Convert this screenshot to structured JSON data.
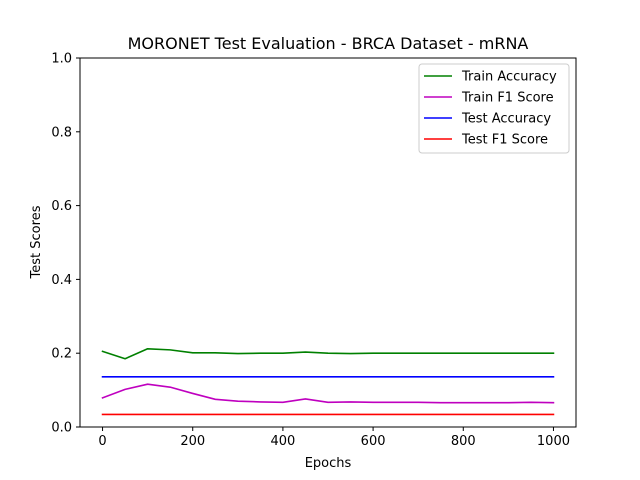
{
  "chart_data": {
    "type": "line",
    "title": "MORONET Test Evaluation - BRCA Dataset - mRNA",
    "xlabel": "Epochs",
    "ylabel": "Test Scores",
    "xlim": [
      -50,
      1050
    ],
    "ylim": [
      0,
      1.0
    ],
    "xticks": [
      0,
      200,
      400,
      600,
      800,
      1000
    ],
    "xtick_labels": [
      "0",
      "200",
      "400",
      "600",
      "800",
      "1000"
    ],
    "yticks": [
      0,
      0.2,
      0.4,
      0.6,
      0.8,
      1.0
    ],
    "ytick_labels": [
      "0.0",
      "0.2",
      "0.4",
      "0.6",
      "0.8",
      "1.0"
    ],
    "grid": false,
    "legend_position": "top-right",
    "x": [
      0,
      50,
      100,
      150,
      200,
      250,
      300,
      350,
      400,
      450,
      500,
      550,
      600,
      650,
      700,
      750,
      800,
      850,
      900,
      950,
      1000
    ],
    "series": [
      {
        "name": "Train Accuracy",
        "color": "#008000",
        "values": [
          0.205,
          0.185,
          0.212,
          0.209,
          0.201,
          0.201,
          0.199,
          0.2,
          0.2,
          0.203,
          0.2,
          0.199,
          0.2,
          0.2,
          0.2,
          0.2,
          0.2,
          0.2,
          0.2,
          0.2,
          0.2
        ]
      },
      {
        "name": "Train F1 Score",
        "color": "#bf00bf",
        "values": [
          0.079,
          0.102,
          0.116,
          0.108,
          0.091,
          0.075,
          0.07,
          0.068,
          0.067,
          0.076,
          0.067,
          0.068,
          0.067,
          0.067,
          0.067,
          0.066,
          0.066,
          0.066,
          0.066,
          0.067,
          0.066
        ]
      },
      {
        "name": "Test Accuracy",
        "color": "#0000ff",
        "values": [
          0.136,
          0.136,
          0.136,
          0.136,
          0.136,
          0.136,
          0.136,
          0.136,
          0.136,
          0.136,
          0.136,
          0.136,
          0.136,
          0.136,
          0.136,
          0.136,
          0.136,
          0.136,
          0.136,
          0.136,
          0.136
        ]
      },
      {
        "name": "Test F1 Score",
        "color": "#ff0000",
        "values": [
          0.034,
          0.034,
          0.034,
          0.034,
          0.034,
          0.034,
          0.034,
          0.034,
          0.034,
          0.034,
          0.034,
          0.034,
          0.034,
          0.034,
          0.034,
          0.034,
          0.034,
          0.034,
          0.034,
          0.034,
          0.034
        ]
      }
    ]
  }
}
